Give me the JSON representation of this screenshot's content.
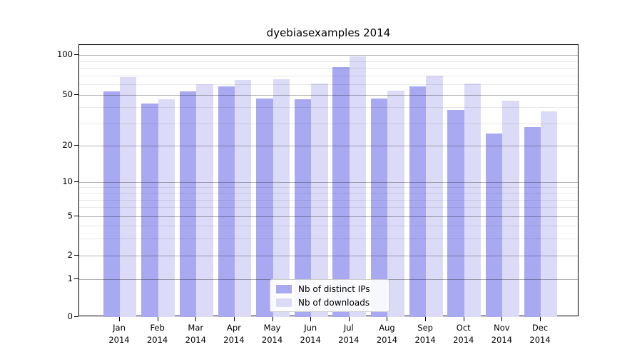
{
  "chart_data": {
    "type": "bar",
    "title": "dyebiasexamples 2014",
    "categories": [
      "Jan",
      "Feb",
      "Mar",
      "Apr",
      "May",
      "Jun",
      "Jul",
      "Aug",
      "Sep",
      "Oct",
      "Nov",
      "Dec"
    ],
    "category_year": "2014",
    "series": [
      {
        "name": "Nb of distinct IPs",
        "color": "#a9a9f2",
        "values": [
          53,
          43,
          53,
          58,
          47,
          46,
          81,
          47,
          58,
          38,
          25,
          28
        ]
      },
      {
        "name": "Nb of downloads",
        "color": "#dbdbf8",
        "values": [
          68,
          46,
          60,
          65,
          66,
          61,
          98,
          54,
          70,
          61,
          45,
          37
        ]
      }
    ],
    "xlabel": "",
    "ylabel": "",
    "yscale": "log-like",
    "yticks": [
      0,
      1,
      2,
      5,
      10,
      20,
      50,
      100
    ],
    "ytick_labels": [
      "0",
      "1",
      "2",
      "5",
      "10",
      "20",
      "50",
      "100"
    ],
    "minor_yticks": [
      3,
      4,
      6,
      7,
      8,
      9,
      30,
      40,
      60,
      70,
      80,
      90
    ],
    "ylim": [
      0,
      120
    ],
    "grid": true,
    "legend_position": "bottom-center"
  },
  "colors": {
    "bar_dark": "#a9a9f2",
    "bar_light": "#dbdbf8",
    "grid_major": "#b1b1b1",
    "grid_minor": "#e8e8e8",
    "axis": "#000000",
    "background": "#ffffff"
  }
}
